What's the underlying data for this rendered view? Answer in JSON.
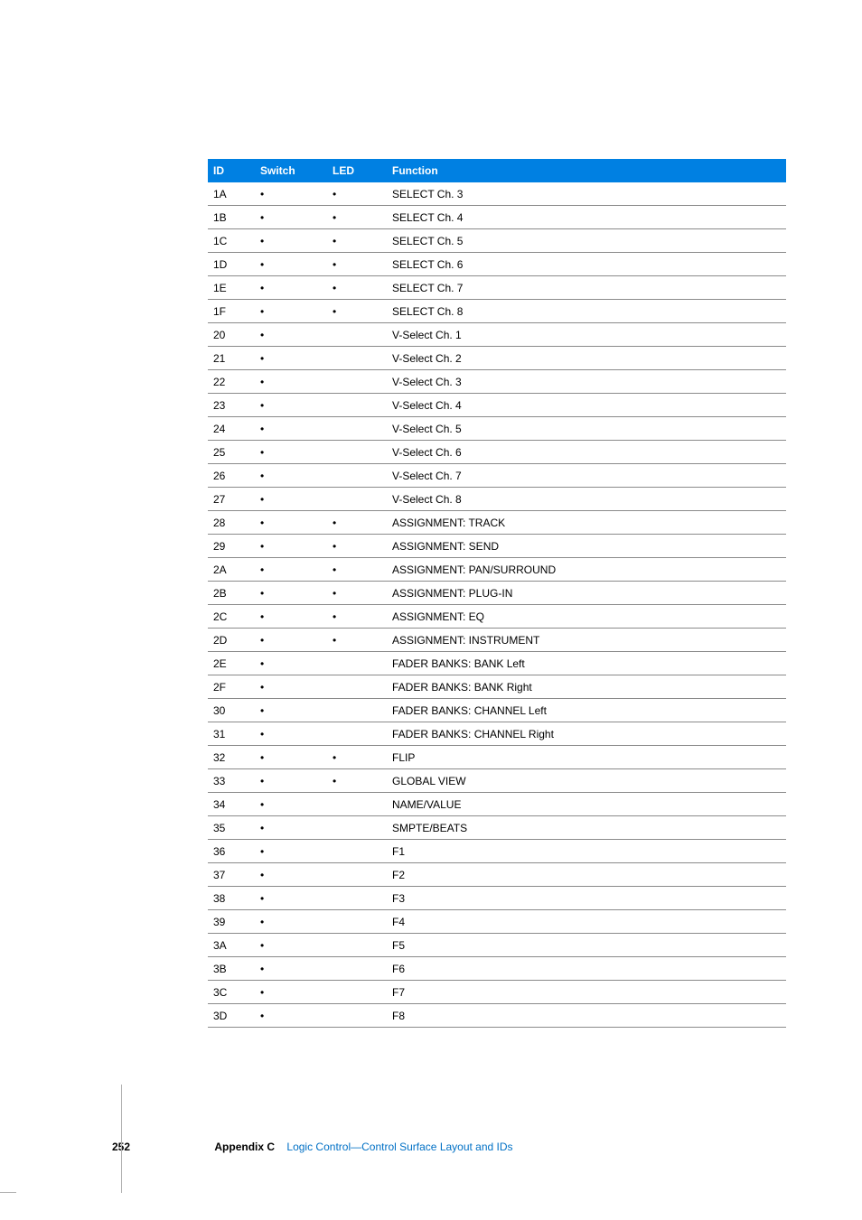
{
  "table": {
    "headers": {
      "id": "ID",
      "switch": "Switch",
      "led": "LED",
      "function": "Function"
    },
    "dot": "•",
    "rows": [
      {
        "id": "1A",
        "switch": true,
        "led": true,
        "fn": "SELECT Ch. 3"
      },
      {
        "id": "1B",
        "switch": true,
        "led": true,
        "fn": "SELECT Ch. 4"
      },
      {
        "id": "1C",
        "switch": true,
        "led": true,
        "fn": "SELECT Ch. 5"
      },
      {
        "id": "1D",
        "switch": true,
        "led": true,
        "fn": "SELECT Ch. 6"
      },
      {
        "id": "1E",
        "switch": true,
        "led": true,
        "fn": "SELECT Ch. 7"
      },
      {
        "id": "1F",
        "switch": true,
        "led": true,
        "fn": "SELECT Ch. 8"
      },
      {
        "id": "20",
        "switch": true,
        "led": false,
        "fn": "V-Select Ch. 1"
      },
      {
        "id": "21",
        "switch": true,
        "led": false,
        "fn": "V-Select Ch. 2"
      },
      {
        "id": "22",
        "switch": true,
        "led": false,
        "fn": "V-Select Ch. 3"
      },
      {
        "id": "23",
        "switch": true,
        "led": false,
        "fn": "V-Select Ch. 4"
      },
      {
        "id": "24",
        "switch": true,
        "led": false,
        "fn": "V-Select Ch. 5"
      },
      {
        "id": "25",
        "switch": true,
        "led": false,
        "fn": "V-Select Ch. 6"
      },
      {
        "id": "26",
        "switch": true,
        "led": false,
        "fn": "V-Select Ch. 7"
      },
      {
        "id": "27",
        "switch": true,
        "led": false,
        "fn": "V-Select Ch. 8"
      },
      {
        "id": "28",
        "switch": true,
        "led": true,
        "fn": "ASSIGNMENT:  TRACK"
      },
      {
        "id": "29",
        "switch": true,
        "led": true,
        "fn": "ASSIGNMENT:  SEND"
      },
      {
        "id": "2A",
        "switch": true,
        "led": true,
        "fn": "ASSIGNMENT:  PAN/SURROUND"
      },
      {
        "id": "2B",
        "switch": true,
        "led": true,
        "fn": "ASSIGNMENT:  PLUG-IN"
      },
      {
        "id": "2C",
        "switch": true,
        "led": true,
        "fn": "ASSIGNMENT:  EQ"
      },
      {
        "id": "2D",
        "switch": true,
        "led": true,
        "fn": "ASSIGNMENT:  INSTRUMENT"
      },
      {
        "id": "2E",
        "switch": true,
        "led": false,
        "fn": "FADER BANKS:  BANK Left"
      },
      {
        "id": "2F",
        "switch": true,
        "led": false,
        "fn": "FADER BANKS:  BANK Right"
      },
      {
        "id": "30",
        "switch": true,
        "led": false,
        "fn": "FADER BANKS:  CHANNEL Left"
      },
      {
        "id": "31",
        "switch": true,
        "led": false,
        "fn": "FADER BANKS:  CHANNEL Right"
      },
      {
        "id": "32",
        "switch": true,
        "led": true,
        "fn": "FLIP"
      },
      {
        "id": "33",
        "switch": true,
        "led": true,
        "fn": "GLOBAL VIEW"
      },
      {
        "id": "34",
        "switch": true,
        "led": false,
        "fn": "NAME/VALUE"
      },
      {
        "id": "35",
        "switch": true,
        "led": false,
        "fn": "SMPTE/BEATS"
      },
      {
        "id": "36",
        "switch": true,
        "led": false,
        "fn": "F1"
      },
      {
        "id": "37",
        "switch": true,
        "led": false,
        "fn": "F2"
      },
      {
        "id": "38",
        "switch": true,
        "led": false,
        "fn": "F3"
      },
      {
        "id": "39",
        "switch": true,
        "led": false,
        "fn": "F4"
      },
      {
        "id": "3A",
        "switch": true,
        "led": false,
        "fn": "F5"
      },
      {
        "id": "3B",
        "switch": true,
        "led": false,
        "fn": "F6"
      },
      {
        "id": "3C",
        "switch": true,
        "led": false,
        "fn": "F7"
      },
      {
        "id": "3D",
        "switch": true,
        "led": false,
        "fn": "F8"
      }
    ]
  },
  "footer": {
    "page_number": "252",
    "appendix_label": "Appendix C",
    "appendix_title": "Logic Control—Control Surface Layout and IDs"
  }
}
